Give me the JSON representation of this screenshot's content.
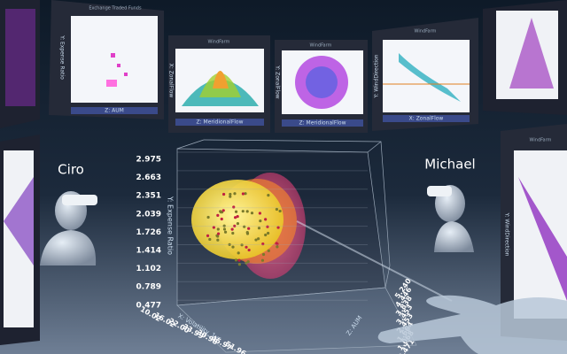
{
  "avatars": [
    {
      "name": "Ciro"
    },
    {
      "name": "Michael"
    }
  ],
  "panels": [
    {
      "title": "Exchange Traded Funds",
      "y_label": "Y: Expense Ratio",
      "x_label": "Z: AUM"
    },
    {
      "title": "WindFarm",
      "y_label": "X: ZonalFlow",
      "x_label": "Z: MeridionalFlow"
    },
    {
      "title": "WindFarm",
      "y_label": "Y: ZonalFlow",
      "x_label": "Z: MeridionalFlow"
    },
    {
      "title": "WindFarm",
      "y_label": "Y: WindDirection",
      "x_label": "X: ZonalFlow"
    },
    {
      "title": "WindFarm",
      "y_label": "Y: WindDirection"
    }
  ],
  "main_chart": {
    "y_label": "Y: Expense Ratio",
    "x_label": "X: Volatility_1yr",
    "z_label": "Z: AUM",
    "y_ticks": [
      "2.975",
      "2.663",
      "2.351",
      "2.039",
      "1.726",
      "1.414",
      "1.102",
      "0.789",
      "0.477"
    ],
    "x_ticks": [
      "10.02",
      "16.02",
      "22.00",
      "33.99",
      "39.98",
      "45.97",
      "51.96"
    ],
    "z_ticks": [
      "5.240",
      "4.446",
      "3.838",
      "3.453",
      "2.453",
      "1.664",
      "1.068",
      "0.471"
    ]
  }
}
